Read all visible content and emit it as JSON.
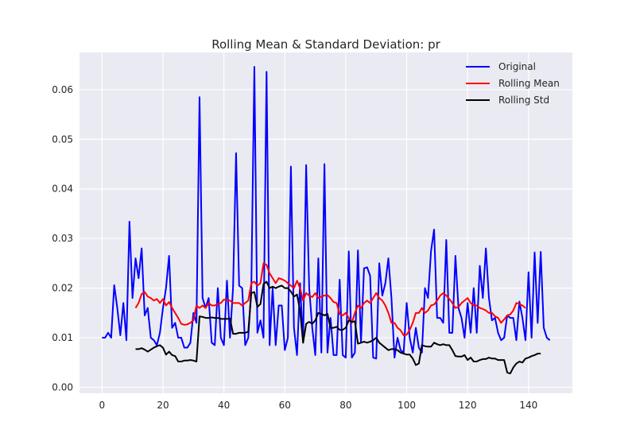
{
  "chart_data": {
    "type": "line",
    "title": "Rolling Mean & Standard Deviation: pr",
    "xlabel": "",
    "ylabel": "",
    "xlim": [
      -7.4,
      154.4
    ],
    "ylim": [
      -0.0012,
      0.0675
    ],
    "x_ticks": [
      0,
      20,
      40,
      60,
      80,
      100,
      120,
      140
    ],
    "y_ticks": [
      0.0,
      0.01,
      0.02,
      0.03,
      0.04,
      0.05,
      0.06
    ],
    "y_tick_labels": [
      "0.00",
      "0.01",
      "0.02",
      "0.03",
      "0.04",
      "0.05",
      "0.06"
    ],
    "grid": true,
    "legend_position": "top-right",
    "colors": {
      "background": "#eaeaf2",
      "grid": "#ffffff",
      "original": "#0000ff",
      "rolling_mean": "#ff0000",
      "rolling_std": "#000000"
    },
    "series": [
      {
        "name": "Original",
        "color": "#0000ff",
        "x_start": 0,
        "values": [
          0.01,
          0.01,
          0.011,
          0.01,
          0.0206,
          0.016,
          0.0105,
          0.017,
          0.0095,
          0.0334,
          0.018,
          0.026,
          0.022,
          0.028,
          0.0145,
          0.016,
          0.01,
          0.0095,
          0.0085,
          0.011,
          0.016,
          0.02,
          0.0265,
          0.012,
          0.013,
          0.01,
          0.01,
          0.008,
          0.008,
          0.009,
          0.015,
          0.013,
          0.0585,
          0.018,
          0.016,
          0.018,
          0.009,
          0.0085,
          0.02,
          0.01,
          0.0085,
          0.0215,
          0.01,
          0.02,
          0.0472,
          0.0205,
          0.02,
          0.0085,
          0.01,
          0.02,
          0.0646,
          0.011,
          0.0135,
          0.01,
          0.0636,
          0.0085,
          0.02,
          0.0085,
          0.0165,
          0.0165,
          0.0075,
          0.01,
          0.0445,
          0.012,
          0.0065,
          0.021,
          0.009,
          0.0448,
          0.02,
          0.012,
          0.0065,
          0.026,
          0.007,
          0.045,
          0.007,
          0.014,
          0.0065,
          0.0065,
          0.0217,
          0.0065,
          0.006,
          0.0274,
          0.006,
          0.007,
          0.0276,
          0.009,
          0.024,
          0.0242,
          0.0225,
          0.006,
          0.0058,
          0.025,
          0.0185,
          0.021,
          0.026,
          0.018,
          0.006,
          0.01,
          0.0075,
          0.007,
          0.017,
          0.01,
          0.007,
          0.012,
          0.008,
          0.007,
          0.02,
          0.018,
          0.0275,
          0.0318,
          0.014,
          0.014,
          0.013,
          0.0297,
          0.011,
          0.011,
          0.0265,
          0.016,
          0.014,
          0.01,
          0.017,
          0.011,
          0.02,
          0.011,
          0.0245,
          0.018,
          0.028,
          0.018,
          0.0135,
          0.014,
          0.011,
          0.0095,
          0.01,
          0.0145,
          0.014,
          0.014,
          0.0095,
          0.0173,
          0.014,
          0.0095,
          0.0232,
          0.01,
          0.0272,
          0.013,
          0.0273,
          0.012,
          0.01,
          0.0095
        ]
      },
      {
        "name": "Rolling Mean",
        "color": "#ff0000",
        "x_start": 11,
        "values": [
          0.016,
          0.017,
          0.0188,
          0.0192,
          0.0183,
          0.018,
          0.0175,
          0.0178,
          0.017,
          0.0178,
          0.0165,
          0.0172,
          0.016,
          0.015,
          0.014,
          0.0128,
          0.0126,
          0.0127,
          0.013,
          0.0135,
          0.0165,
          0.016,
          0.0165,
          0.016,
          0.017,
          0.0165,
          0.0165,
          0.0168,
          0.017,
          0.0177,
          0.0176,
          0.0175,
          0.017,
          0.017,
          0.017,
          0.0165,
          0.017,
          0.0175,
          0.021,
          0.0213,
          0.0205,
          0.021,
          0.025,
          0.0247,
          0.023,
          0.022,
          0.021,
          0.022,
          0.0218,
          0.0215,
          0.021,
          0.0205,
          0.02,
          0.0215,
          0.02,
          0.0175,
          0.019,
          0.0185,
          0.0182,
          0.019,
          0.018,
          0.0183,
          0.0185,
          0.0186,
          0.018,
          0.0172,
          0.017,
          0.0148,
          0.0145,
          0.015,
          0.014,
          0.013,
          0.015,
          0.0165,
          0.016,
          0.017,
          0.0175,
          0.017,
          0.018,
          0.019,
          0.018,
          0.0175,
          0.0165,
          0.015,
          0.013,
          0.013,
          0.012,
          0.0115,
          0.0105,
          0.0106,
          0.0116,
          0.013,
          0.015,
          0.015,
          0.016,
          0.015,
          0.0155,
          0.0165,
          0.0167,
          0.0175,
          0.0185,
          0.019,
          0.0185,
          0.0178,
          0.017,
          0.016,
          0.0162,
          0.017,
          0.0175,
          0.018,
          0.017,
          0.0165,
          0.0165,
          0.016,
          0.0158,
          0.0155,
          0.015,
          0.015,
          0.0143,
          0.014,
          0.013,
          0.0137,
          0.0145,
          0.0147,
          0.0155,
          0.017,
          0.0168,
          0.0165,
          0.016
        ]
      },
      {
        "name": "Rolling Std",
        "color": "#000000",
        "x_start": 11,
        "values": [
          0.0077,
          0.0077,
          0.0079,
          0.0076,
          0.0072,
          0.0076,
          0.008,
          0.0083,
          0.0085,
          0.008,
          0.0066,
          0.0072,
          0.0065,
          0.0063,
          0.0052,
          0.0052,
          0.0054,
          0.0054,
          0.0055,
          0.0054,
          0.0052,
          0.0143,
          0.0142,
          0.014,
          0.014,
          0.0141,
          0.014,
          0.014,
          0.0138,
          0.0138,
          0.0138,
          0.0139,
          0.0108,
          0.0108,
          0.011,
          0.011,
          0.011,
          0.0112,
          0.019,
          0.0192,
          0.0162,
          0.0168,
          0.0208,
          0.0213,
          0.02,
          0.0203,
          0.02,
          0.0203,
          0.0205,
          0.02,
          0.02,
          0.0193,
          0.0183,
          0.0187,
          0.0155,
          0.009,
          0.0128,
          0.0132,
          0.0128,
          0.0135,
          0.015,
          0.0148,
          0.0145,
          0.0148,
          0.012,
          0.012,
          0.0122,
          0.0116,
          0.0116,
          0.012,
          0.0135,
          0.0132,
          0.0133,
          0.0088,
          0.009,
          0.0092,
          0.009,
          0.0092,
          0.0095,
          0.01,
          0.009,
          0.0085,
          0.008,
          0.0075,
          0.0077,
          0.0077,
          0.0075,
          0.007,
          0.0068,
          0.0066,
          0.0066,
          0.0058,
          0.0045,
          0.0048,
          0.0085,
          0.0083,
          0.0082,
          0.0082,
          0.009,
          0.0087,
          0.0085,
          0.0087,
          0.0085,
          0.0085,
          0.0075,
          0.0063,
          0.0062,
          0.0062,
          0.0065,
          0.0055,
          0.006,
          0.0052,
          0.0052,
          0.0055,
          0.0057,
          0.0057,
          0.006,
          0.0058,
          0.0058,
          0.0055,
          0.0055,
          0.0055,
          0.003,
          0.0028,
          0.004,
          0.0048,
          0.0052,
          0.005,
          0.0058,
          0.006,
          0.0063,
          0.0065,
          0.0068,
          0.0068
        ]
      }
    ]
  }
}
